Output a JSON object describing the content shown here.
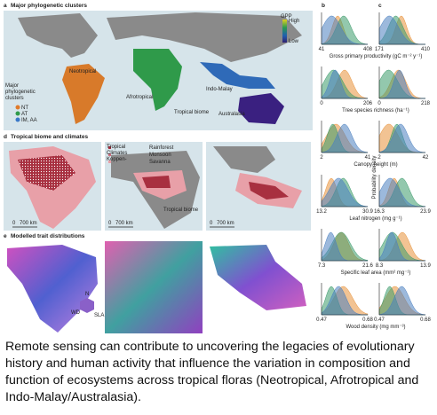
{
  "panel_a": {
    "label": "a",
    "title": "Major phylogenetic clusters",
    "legend_title": "Major phylogenetic clusters",
    "legend": [
      "NT",
      "AT",
      "IM, AA"
    ],
    "regions": [
      "Neotropical",
      "Afrotropical",
      "Indo-Malay",
      "Australasia"
    ],
    "biome_label": "Tropical biome",
    "gpp_title": "GPP",
    "gpp_high": "High",
    "gpp_low": "Low"
  },
  "panel_b_label": "b",
  "panel_c_label": "c",
  "y_axis_label": "Probability density",
  "density_rows": [
    {
      "xlabel": "Gross primary productivity (gC m⁻² y⁻¹)",
      "b_ticks": [
        "41",
        "408"
      ],
      "c_ticks": [
        "171",
        "410"
      ]
    },
    {
      "xlabel": "Tree species richness (ha⁻¹)",
      "b_ticks": [
        "0",
        "206"
      ],
      "c_ticks": [
        "0",
        "218"
      ]
    },
    {
      "xlabel": "Canopy height (m)",
      "b_ticks": [
        "2",
        "41"
      ],
      "c_ticks": [
        "2",
        "42"
      ]
    },
    {
      "xlabel": "Leaf nitrogen (mg g⁻¹)",
      "b_ticks": [
        "13.2",
        "30.9"
      ],
      "c_ticks": [
        "16.3",
        "23.9"
      ]
    },
    {
      "xlabel": "Specific leaf area (mm² mg⁻¹)",
      "b_ticks": [
        "7.3",
        "21.6"
      ],
      "c_ticks": [
        "8.3",
        "13.9"
      ]
    },
    {
      "xlabel": "Wood density (mg mm⁻³)",
      "b_ticks": [
        "0.47",
        "0.68"
      ],
      "c_ticks": [
        "0.47",
        "0.68"
      ]
    }
  ],
  "panel_d": {
    "label": "d",
    "title": "Tropical biome and climates",
    "legend_title": "Tropical Climates Koppen-",
    "legend": [
      "Rainforest",
      "Monsoon",
      "Savanna"
    ],
    "biome_label": "Tropical biome",
    "scale_zero": "0",
    "scale_km": "700 km"
  },
  "panel_e": {
    "label": "e",
    "title": "Modelled trait distributions",
    "axes": [
      "N",
      "WD",
      "SLA"
    ]
  },
  "caption": "Remote sensing can contribute to uncovering the legacies of evolutionary history and human activity that influence the variation in composition and function of ecosystems across tropical floras (Neotropical, Afrotropical and Indo-Malay/Australasia)."
}
